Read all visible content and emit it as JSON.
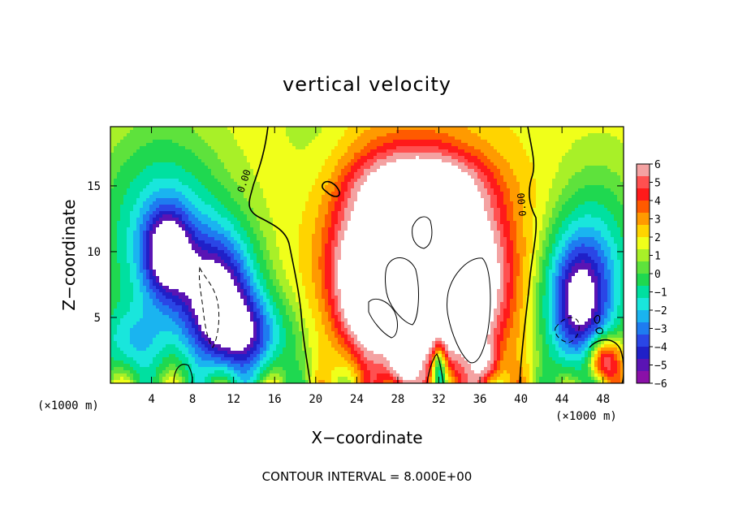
{
  "chart_data": {
    "type": "heatmap",
    "title": "vertical velocity",
    "xlabel": "X−coordinate",
    "ylabel": "Z−coordinate",
    "x_unit_left": "(×1000 m)",
    "x_unit_right": "(×1000 m)",
    "xlim": [
      0,
      50
    ],
    "ylim": [
      0,
      19.5
    ],
    "xticks": [
      4,
      8,
      12,
      16,
      20,
      24,
      28,
      32,
      36,
      40,
      44,
      48
    ],
    "xtick_labels": [
      "4",
      "8",
      "12",
      "16",
      "20",
      "24",
      "28",
      "32",
      "36",
      "40",
      "44",
      "48"
    ],
    "yticks": [
      5,
      10,
      15
    ],
    "ytick_labels": [
      "5",
      "10",
      "15"
    ],
    "colorbar": {
      "range": [
        -6,
        6
      ],
      "tick_labels": [
        "6",
        "5",
        "4",
        "3",
        "2",
        "1",
        "0",
        "−1",
        "−2",
        "−3",
        "−4",
        "−5",
        "−6"
      ],
      "colors": [
        "#f4a2a2",
        "#ff5050",
        "#ff1a1a",
        "#ff5a00",
        "#ff9a00",
        "#ffd400",
        "#f0ff1a",
        "#a8f028",
        "#5ee23c",
        "#1fd850",
        "#00e0a0",
        "#19e6dc",
        "#1ab4f0",
        "#1e7cf0",
        "#2a46e6",
        "#2020c8",
        "#5a14b4",
        "#8a10a8"
      ],
      "color_positions": [
        6.2,
        5.3,
        4.6,
        3.9,
        3.3,
        2.6,
        1.9,
        1.2,
        0.6,
        0.0,
        -0.8,
        -1.6,
        -2.4,
        -3.2,
        -4.0,
        -4.8,
        -5.5,
        -6.2
      ]
    },
    "contour_labels": [
      "0.00",
      "0.00"
    ],
    "blobs": [
      {
        "sign": "pos",
        "x": 29.5,
        "y": 9.5,
        "sx": 5.2,
        "sy": 5.0,
        "amp": 11
      },
      {
        "sign": "pos",
        "x": 25.5,
        "y": 6.8,
        "sx": 2.0,
        "sy": 2.8,
        "amp": 5
      },
      {
        "sign": "pos",
        "x": 34.5,
        "y": 7.0,
        "sx": 2.4,
        "sy": 3.5,
        "amp": 5
      },
      {
        "sign": "pos",
        "x": 30.5,
        "y": 15.0,
        "sx": 4.0,
        "sy": 1.6,
        "amp": 3
      },
      {
        "sign": "pos",
        "x": 48.0,
        "y": 1.8,
        "sx": 1.2,
        "sy": 1.3,
        "amp": 6
      },
      {
        "sign": "pos",
        "x": 28.5,
        "y": 1.2,
        "sx": 1.0,
        "sy": 1.2,
        "amp": 4
      },
      {
        "sign": "pos",
        "x": 36.5,
        "y": 1.5,
        "sx": 1.0,
        "sy": 1.3,
        "amp": 3
      },
      {
        "sign": "neg",
        "x": 10.5,
        "y": 6.5,
        "sx": 2.6,
        "sy": 3.6,
        "amp": 8
      },
      {
        "sign": "neg",
        "x": 5.5,
        "y": 10.0,
        "sx": 1.6,
        "sy": 2.4,
        "amp": 6
      },
      {
        "sign": "neg",
        "x": 5.0,
        "y": 11.0,
        "sx": 4.2,
        "sy": 5.5,
        "amp": 4
      },
      {
        "sign": "neg",
        "x": 13.5,
        "y": 3.5,
        "sx": 2.6,
        "sy": 2.2,
        "amp": 5
      },
      {
        "sign": "neg",
        "x": 45.5,
        "y": 6.0,
        "sx": 2.2,
        "sy": 3.6,
        "amp": 7
      },
      {
        "sign": "neg",
        "x": 47.5,
        "y": 9.0,
        "sx": 3.0,
        "sy": 5.0,
        "amp": 3
      },
      {
        "sign": "neg",
        "x": 2.0,
        "y": 3.0,
        "sx": 2.5,
        "sy": 2.0,
        "amp": 3
      },
      {
        "sign": "neg",
        "x": 32.0,
        "y": 1.2,
        "sx": 0.5,
        "sy": 1.5,
        "amp": 5
      }
    ]
  },
  "footer": {
    "contour_interval": "CONTOUR INTERVAL = 8.000E+00"
  }
}
